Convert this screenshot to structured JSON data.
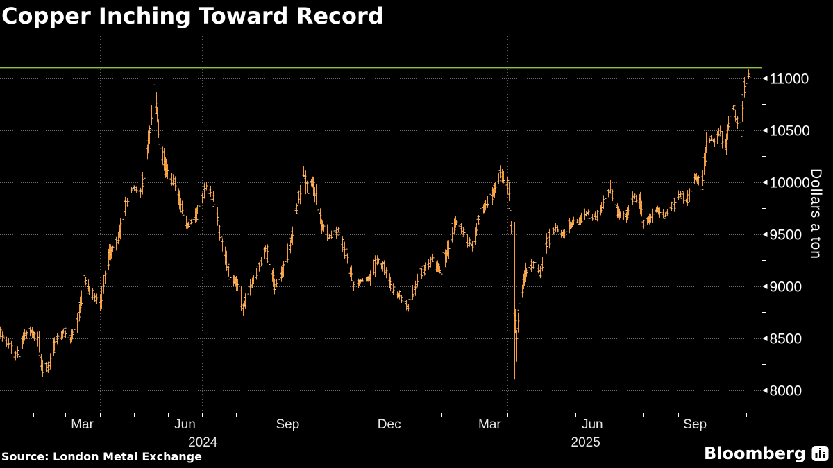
{
  "header": {
    "title": "Copper Inching Toward Record"
  },
  "footer": {
    "source": "Source: London Metal Exchange",
    "brand": "Bloomberg"
  },
  "chart_data": {
    "type": "bar",
    "subtype": "daily-ohlc-bars",
    "title": "Copper Inching Toward Record",
    "ylabel": "Dollars a ton",
    "source": "Source: London Metal Exchange",
    "series_color": "#f29c3d",
    "series_tick_color": "#fdc98f",
    "record_line": {
      "value": 11104.5,
      "color": "#8bc53f"
    },
    "y_axis": {
      "min": 8000,
      "max": 11104,
      "major_ticks": [
        8000,
        8500,
        9000,
        9500,
        10000,
        10500,
        11000
      ],
      "minor_step": 250,
      "label_color": "#ffffff"
    },
    "x_axis": {
      "start": "2024-01-01",
      "end": "2025-11-04",
      "month_labels": [
        {
          "label": "Mar",
          "date": "2024-03-16"
        },
        {
          "label": "Jun",
          "date": "2024-06-16"
        },
        {
          "label": "Sep",
          "date": "2024-09-16"
        },
        {
          "label": "Dec",
          "date": "2024-12-16"
        },
        {
          "label": "Mar",
          "date": "2025-03-16"
        },
        {
          "label": "Jun",
          "date": "2025-06-16"
        },
        {
          "label": "Sep",
          "date": "2025-09-16"
        }
      ],
      "year_labels": [
        {
          "label": "2024",
          "date": "2024-07-02"
        },
        {
          "label": "2025",
          "date": "2025-06-10"
        }
      ],
      "year_separator_date": "2025-01-01",
      "quarter_gridlines": [
        "2024-04-01",
        "2024-07-01",
        "2024-10-01",
        "2025-01-01",
        "2025-04-01",
        "2025-07-01",
        "2025-10-01"
      ],
      "label_color": "#e8e8e8"
    },
    "grid": {
      "h_color": "#6e6e6e",
      "v_color": "#5f5f5f",
      "on": true
    },
    "waypoints": [
      [
        "2024-01-02",
        8560
      ],
      [
        "2024-01-09",
        8470
      ],
      [
        "2024-01-17",
        8310
      ],
      [
        "2024-01-24",
        8520
      ],
      [
        "2024-01-31",
        8570
      ],
      [
        "2024-02-06",
        8450
      ],
      [
        "2024-02-09",
        8210
      ],
      [
        "2024-02-14",
        8230
      ],
      [
        "2024-02-21",
        8480
      ],
      [
        "2024-02-29",
        8570
      ],
      [
        "2024-03-05",
        8480
      ],
      [
        "2024-03-12",
        8680
      ],
      [
        "2024-03-18",
        9080
      ],
      [
        "2024-03-22",
        8950
      ],
      [
        "2024-04-01",
        8850
      ],
      [
        "2024-04-09",
        9300
      ],
      [
        "2024-04-16",
        9420
      ],
      [
        "2024-04-23",
        9750
      ],
      [
        "2024-04-30",
        9950
      ],
      [
        "2024-05-07",
        9900
      ],
      [
        "2024-05-10",
        10050
      ],
      [
        "2024-05-15",
        10450
      ],
      [
        "2024-05-20",
        10900
      ],
      [
        "2024-05-24",
        10350
      ],
      [
        "2024-05-31",
        10100
      ],
      [
        "2024-06-07",
        9980
      ],
      [
        "2024-06-14",
        9700
      ],
      [
        "2024-06-18",
        9580
      ],
      [
        "2024-06-25",
        9680
      ],
      [
        "2024-07-01",
        9850
      ],
      [
        "2024-07-05",
        9960
      ],
      [
        "2024-07-12",
        9840
      ],
      [
        "2024-07-19",
        9400
      ],
      [
        "2024-07-26",
        9100
      ],
      [
        "2024-08-02",
        9020
      ],
      [
        "2024-08-07",
        8800
      ],
      [
        "2024-08-14",
        9020
      ],
      [
        "2024-08-21",
        9180
      ],
      [
        "2024-08-28",
        9380
      ],
      [
        "2024-09-04",
        9000
      ],
      [
        "2024-09-11",
        9120
      ],
      [
        "2024-09-18",
        9400
      ],
      [
        "2024-09-24",
        9750
      ],
      [
        "2024-09-30",
        10080
      ],
      [
        "2024-10-04",
        9920
      ],
      [
        "2024-10-08",
        10020
      ],
      [
        "2024-10-16",
        9600
      ],
      [
        "2024-10-23",
        9480
      ],
      [
        "2024-10-31",
        9540
      ],
      [
        "2024-11-06",
        9350
      ],
      [
        "2024-11-14",
        9010
      ],
      [
        "2024-11-21",
        9060
      ],
      [
        "2024-11-29",
        9080
      ],
      [
        "2024-12-05",
        9250
      ],
      [
        "2024-12-11",
        9180
      ],
      [
        "2024-12-18",
        8990
      ],
      [
        "2024-12-24",
        8920
      ],
      [
        "2024-12-31",
        8830
      ],
      [
        "2025-01-02",
        8800
      ],
      [
        "2025-01-10",
        9050
      ],
      [
        "2025-01-17",
        9180
      ],
      [
        "2025-01-24",
        9270
      ],
      [
        "2025-01-31",
        9130
      ],
      [
        "2025-02-07",
        9380
      ],
      [
        "2025-02-13",
        9620
      ],
      [
        "2025-02-20",
        9520
      ],
      [
        "2025-02-28",
        9380
      ],
      [
        "2025-03-07",
        9680
      ],
      [
        "2025-03-14",
        9800
      ],
      [
        "2025-03-20",
        9920
      ],
      [
        "2025-03-26",
        10080
      ],
      [
        "2025-04-02",
        9940
      ],
      [
        "2025-04-04",
        9560
      ],
      [
        "2025-04-07",
        8800
      ],
      [
        "2025-04-09",
        8520
      ],
      [
        "2025-04-11",
        8750
      ],
      [
        "2025-04-16",
        9100
      ],
      [
        "2025-04-23",
        9220
      ],
      [
        "2025-04-30",
        9130
      ],
      [
        "2025-05-07",
        9440
      ],
      [
        "2025-05-14",
        9560
      ],
      [
        "2025-05-21",
        9500
      ],
      [
        "2025-05-28",
        9600
      ],
      [
        "2025-06-04",
        9640
      ],
      [
        "2025-06-11",
        9710
      ],
      [
        "2025-06-17",
        9650
      ],
      [
        "2025-06-24",
        9760
      ],
      [
        "2025-07-02",
        9930
      ],
      [
        "2025-07-09",
        9700
      ],
      [
        "2025-07-16",
        9660
      ],
      [
        "2025-07-23",
        9880
      ],
      [
        "2025-07-29",
        9780
      ],
      [
        "2025-08-01",
        9590
      ],
      [
        "2025-08-06",
        9650
      ],
      [
        "2025-08-13",
        9740
      ],
      [
        "2025-08-20",
        9680
      ],
      [
        "2025-08-27",
        9780
      ],
      [
        "2025-09-03",
        9890
      ],
      [
        "2025-09-08",
        9820
      ],
      [
        "2025-09-16",
        10050
      ],
      [
        "2025-09-22",
        9980
      ],
      [
        "2025-09-26",
        10350
      ],
      [
        "2025-09-30",
        10420
      ],
      [
        "2025-10-03",
        10390
      ],
      [
        "2025-10-08",
        10500
      ],
      [
        "2025-10-10",
        10420
      ],
      [
        "2025-10-14",
        10380
      ],
      [
        "2025-10-17",
        10620
      ],
      [
        "2025-10-21",
        10740
      ],
      [
        "2025-10-23",
        10560
      ],
      [
        "2025-10-27",
        10520
      ],
      [
        "2025-10-29",
        10850
      ],
      [
        "2025-10-31",
        10990
      ],
      [
        "2025-11-03",
        11020
      ],
      [
        "2025-11-04",
        11010
      ]
    ],
    "anchors": {
      "2024-02-09": {
        "low": 8127
      },
      "2024-05-20": {
        "high": 11104,
        "low": 10560,
        "close": 10720
      },
      "2024-08-07": {
        "low": 8714
      },
      "2024-09-30": {
        "high": 10158
      },
      "2025-01-02": {
        "low": 8757
      },
      "2025-03-26": {
        "high": 10164
      },
      "2025-04-07": {
        "high": 9620,
        "low": 8105,
        "close": 8560
      },
      "2025-04-09": {
        "low": 8275
      },
      "2025-07-02": {
        "high": 10020
      },
      "2025-09-26": {
        "high": 10485
      },
      "2025-10-29": {
        "high": 11000
      },
      "2025-11-03": {
        "high": 11085,
        "close": 11040
      },
      "2025-11-04": {
        "high": 11060,
        "low": 10930,
        "close": 11005
      }
    }
  }
}
